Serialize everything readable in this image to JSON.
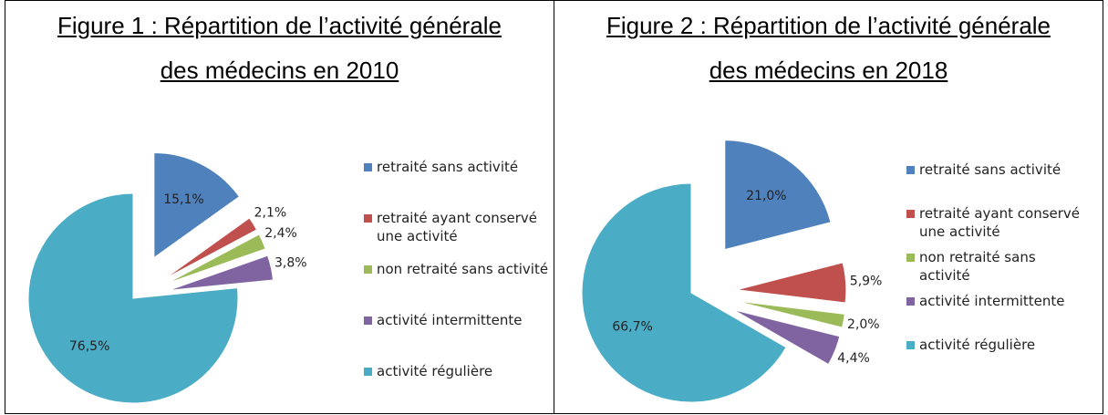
{
  "chart_data": [
    {
      "type": "pie",
      "title": [
        "Figure 1 : Répartition de l’activité générale",
        "des médecins en 2010"
      ],
      "categories": [
        "retraité sans activité",
        "retraité ayant conservé une activité",
        "non retraité sans activité",
        "activité intermittente",
        "activité régulière"
      ],
      "values": [
        15.1,
        2.1,
        2.4,
        3.8,
        76.5
      ],
      "value_labels": [
        "15,1%",
        "2,1%",
        "2,4%",
        "3,8%",
        "76,5%"
      ],
      "colors": [
        "#4f81bd",
        "#c0504d",
        "#9bbb59",
        "#8064a2",
        "#4bacc6"
      ]
    },
    {
      "type": "pie",
      "title": [
        "Figure 2 : Répartition de l’activité générale",
        "des médecins en 2018"
      ],
      "categories": [
        "retraité sans activité",
        "retraité ayant conservé une activité",
        "non retraité sans activité",
        "activité intermittente",
        "activité régulière"
      ],
      "values": [
        21.0,
        5.9,
        2.0,
        4.4,
        66.7
      ],
      "value_labels": [
        "21,0%",
        "5,9%",
        "2,0%",
        "4,4%",
        "66,7%"
      ],
      "colors": [
        "#4f81bd",
        "#c0504d",
        "#9bbb59",
        "#8064a2",
        "#4bacc6"
      ]
    }
  ]
}
